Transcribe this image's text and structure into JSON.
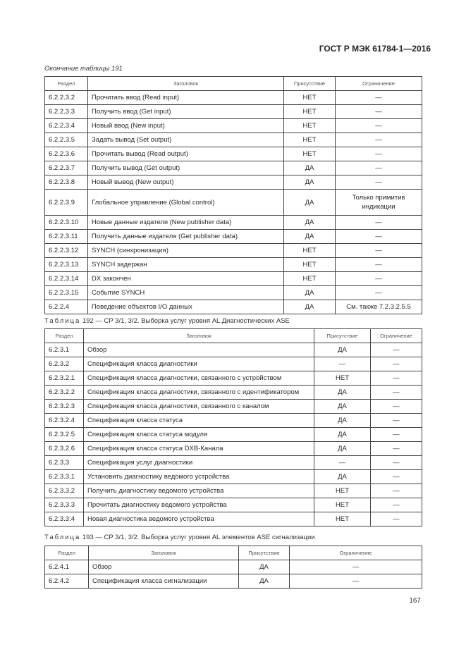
{
  "header": "ГОСТ Р МЭК 61784-1—2016",
  "page_number": "167",
  "columns": [
    "Раздел",
    "Заголовок",
    "Присутствие",
    "Ограничение"
  ],
  "table191": {
    "caption": "Окончание таблицы 191",
    "rows": [
      [
        "6.2.2.3.2",
        "Прочитать ввод (Read input)",
        "НЕТ",
        "—"
      ],
      [
        "6.2.2.3.3",
        "Получить ввод (Get input)",
        "НЕТ",
        "—"
      ],
      [
        "6.2.2.3.4",
        "Новый ввод (New input)",
        "НЕТ",
        "—"
      ],
      [
        "6.2.2.3.5",
        "Задать вывод (Set output)",
        "НЕТ",
        "—"
      ],
      [
        "6.2.2.3.6",
        "Прочитать вывод (Read output)",
        "НЕТ",
        "—"
      ],
      [
        "6.2.2.3.7",
        "Получить вывод (Get output)",
        "ДА",
        "—"
      ],
      [
        "6.2.2.3.8",
        "Новый вывод (New output)",
        "ДА",
        "—"
      ],
      [
        "6.2.2.3.9",
        "Глобальное управление (Global control)",
        "ДА",
        "Только примитив индикации"
      ],
      [
        "6.2.2.3.10",
        "Новые данные издателя (New publisher data)",
        "ДА",
        "—"
      ],
      [
        "6.2.2.3.11",
        "Получить данные издателя (Get publisher data)",
        "ДА",
        "—"
      ],
      [
        "6.2.2.3.12",
        "SYNCH (синхронизация)",
        "НЕТ",
        "—"
      ],
      [
        "6.2.2.3.13",
        "SYNCH задержан",
        "НЕТ",
        "—"
      ],
      [
        "6.2.2.3.14",
        "DX закончен",
        "НЕТ",
        "—"
      ],
      [
        "6.2.2.3.15",
        "Событие SYNCH",
        "ДА",
        "—"
      ],
      [
        "6.2.2.4",
        "Поведение объектов I/O данных",
        "ДА",
        "См. также 7.2.3.2.5.5"
      ]
    ]
  },
  "table192": {
    "caption_prefix": "Таблица",
    "caption": "192 — CP 3/1, 3/2. Выборка услуг уровня AL Диагностических ASE",
    "rows": [
      [
        "6.2.3.1",
        "Обзор",
        "ДА",
        "—"
      ],
      [
        "6.2.3.2",
        "Спецификация класса диагностики",
        "—",
        "—"
      ],
      [
        "6.2.3.2.1",
        "Спецификация класса диагностики, связанного с устройством",
        "НЕТ",
        "—"
      ],
      [
        "6.2.3.2.2",
        "Спецификация класса диагностики, связанного с идентификатором",
        "ДА",
        "—"
      ],
      [
        "6.2.3.2.3",
        "Спецификация класса диагностики, связанного с каналом",
        "ДА",
        "—"
      ],
      [
        "6.2.3.2.4",
        "Спецификация класса статуса",
        "ДА",
        "—"
      ],
      [
        "6.2.3.2.5",
        "Спецификация класса статуса модуля",
        "ДА",
        "—"
      ],
      [
        "6.2.3.2.6",
        "Спецификация класса статуса DXB-Канала",
        "ДА",
        "—"
      ],
      [
        "6.2.3.3",
        "Спецификация услуг диагностики",
        "—",
        "—"
      ],
      [
        "6.2.3.3.1",
        "Установить диагностику ведомого устройства",
        "ДА",
        "—"
      ],
      [
        "6.2.3.3.2",
        "Получить диагностику ведомого устройства",
        "НЕТ",
        "—"
      ],
      [
        "6.2.3.3.3",
        "Прочитать диагностику ведомого устройства",
        "НЕТ",
        "—"
      ],
      [
        "6.2.3.3.4",
        "Новая диагностика ведомого устройства",
        "НЕТ",
        "—"
      ]
    ]
  },
  "table193": {
    "caption_prefix": "Таблица",
    "caption": "193 — CP 3/1, 3/2. Выборка услуг уровня AL элементов ASE сигнализации",
    "rows": [
      [
        "6.2.4.1",
        "Обзор",
        "ДА",
        "—"
      ],
      [
        "6.2.4.2",
        "Спецификация класса сигнализации",
        "ДА",
        "—"
      ]
    ]
  }
}
